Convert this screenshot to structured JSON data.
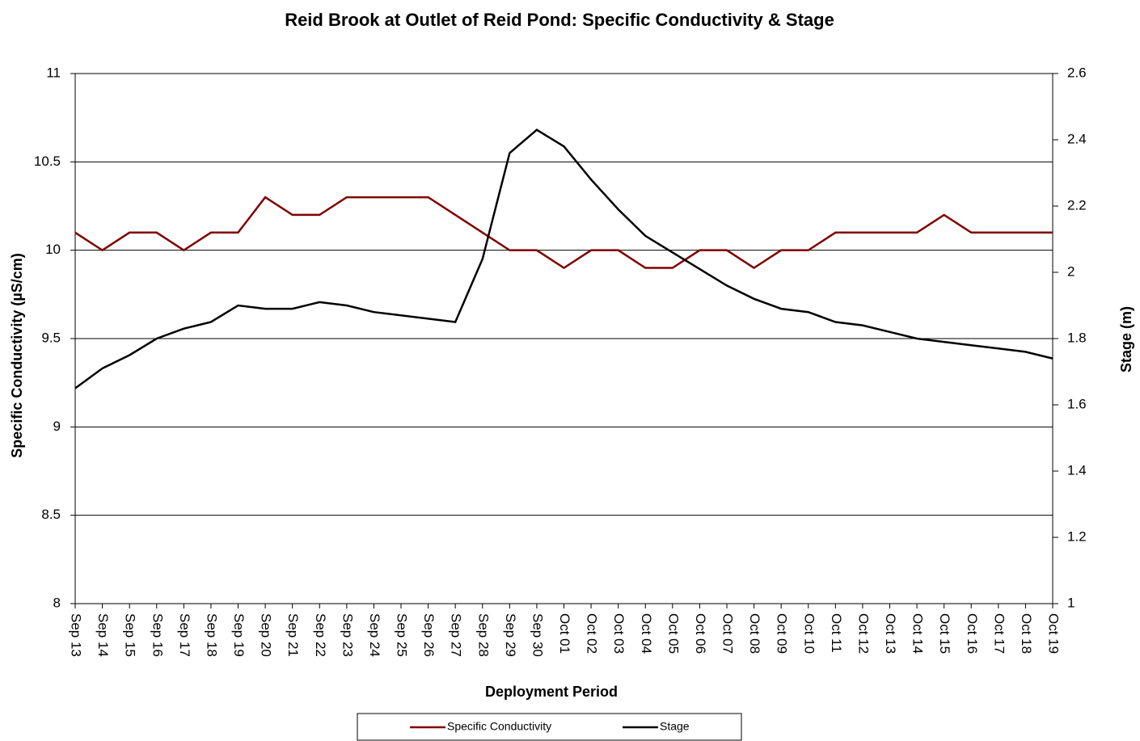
{
  "chart_data": {
    "type": "line",
    "title": "Reid Brook at Outlet of Reid Pond: Specific Conductivity & Stage",
    "x_label": "Deployment Period",
    "y_label": "Specific Conductivity (µS/cm)",
    "y2_label": "Stage (m)",
    "categories": [
      "Sep 13",
      "Sep 14",
      "Sep 15",
      "Sep 16",
      "Sep 17",
      "Sep 18",
      "Sep 19",
      "Sep 20",
      "Sep 21",
      "Sep 22",
      "Sep 23",
      "Sep 24",
      "Sep 25",
      "Sep 26",
      "Sep 27",
      "Sep 28",
      "Sep 29",
      "Sep 30",
      "Oct 01",
      "Oct 02",
      "Oct 03",
      "Oct 04",
      "Oct 05",
      "Oct 06",
      "Oct 07",
      "Oct 08",
      "Oct 09",
      "Oct 10",
      "Oct 11",
      "Oct 12",
      "Oct 13",
      "Oct 14",
      "Oct 15",
      "Oct 16",
      "Oct 17",
      "Oct 18",
      "Oct 19"
    ],
    "series": [
      {
        "name": "Specific Conductivity",
        "color": "#800000",
        "axis": "y",
        "values": [
          10.1,
          10.0,
          10.1,
          10.1,
          10.0,
          10.1,
          10.1,
          10.3,
          10.2,
          10.2,
          10.3,
          10.3,
          10.3,
          10.3,
          10.2,
          10.1,
          10.0,
          10.0,
          9.9,
          10.0,
          10.0,
          9.9,
          9.9,
          10.0,
          10.0,
          9.9,
          10.0,
          10.0,
          10.1,
          10.1,
          10.1,
          10.1,
          10.2,
          10.1,
          10.1,
          10.1,
          10.1
        ]
      },
      {
        "name": "Stage",
        "color": "#000000",
        "axis": "y2",
        "values": [
          1.65,
          1.71,
          1.75,
          1.8,
          1.83,
          1.85,
          1.9,
          1.89,
          1.89,
          1.91,
          1.9,
          1.88,
          1.87,
          1.86,
          1.85,
          2.04,
          2.36,
          2.43,
          2.38,
          2.28,
          2.19,
          2.11,
          2.06,
          2.01,
          1.96,
          1.92,
          1.89,
          1.88,
          1.85,
          1.84,
          1.82,
          1.8,
          1.79,
          1.78,
          1.77,
          1.76,
          1.74
        ]
      }
    ],
    "ylim": [
      8,
      11
    ],
    "yticks": [
      8,
      8.5,
      9,
      9.5,
      10,
      10.5,
      11
    ],
    "y2lim": [
      1,
      2.6
    ],
    "y2ticks": [
      1,
      1.2,
      1.4,
      1.6,
      1.8,
      2,
      2.2,
      2.4,
      2.6
    ],
    "grid": true
  }
}
